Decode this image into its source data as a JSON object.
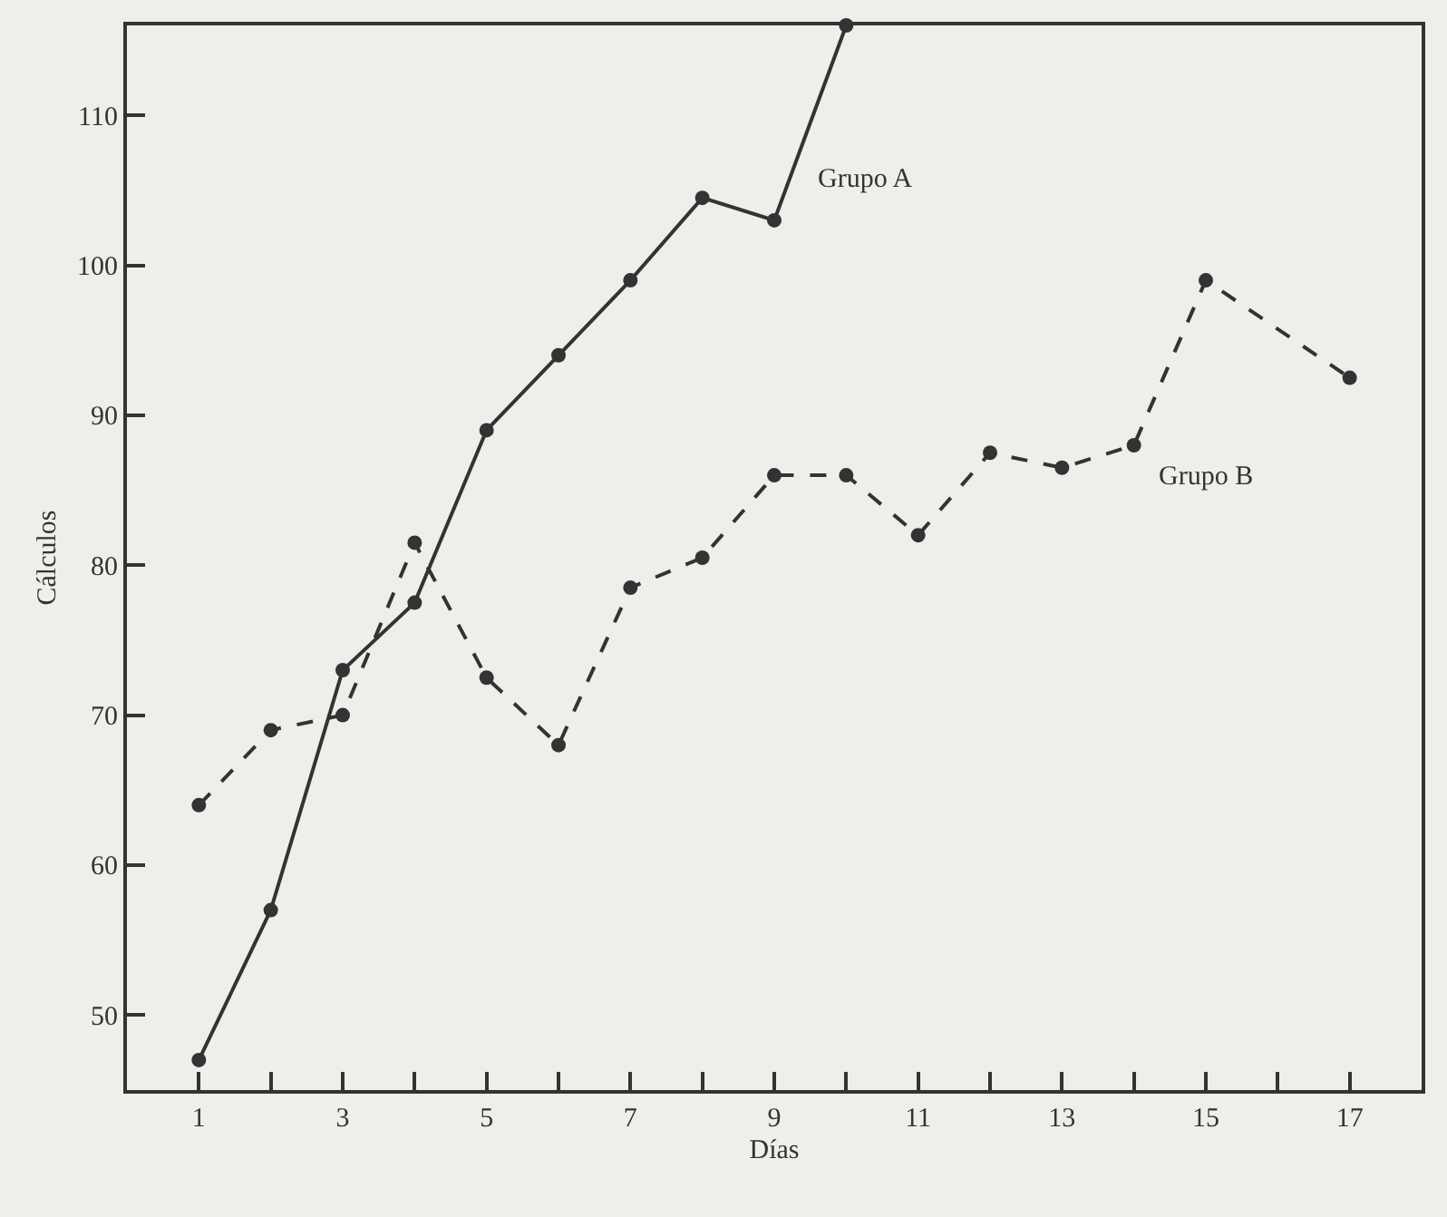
{
  "chart_data": {
    "type": "line",
    "xlabel": "Días",
    "ylabel": "Cálculos",
    "xlim": [
      0,
      18
    ],
    "ylim": [
      45,
      116
    ],
    "xticks": [
      1,
      {
        "value": 2,
        "label": null
      },
      3,
      {
        "value": 4,
        "label": null
      },
      5,
      {
        "value": 6,
        "label": null
      },
      7,
      {
        "value": 8,
        "label": null
      },
      9,
      {
        "value": 10,
        "label": null
      },
      11,
      {
        "value": 12,
        "label": null
      },
      13,
      {
        "value": 14,
        "label": null
      },
      15,
      {
        "value": 16,
        "label": null
      },
      17
    ],
    "yticks": [
      50,
      60,
      70,
      80,
      90,
      100,
      110
    ],
    "grid": false,
    "legend": false,
    "marker": "circle",
    "series": [
      {
        "name": "Grupo A",
        "color": "#333333",
        "line_style": "solid",
        "x": [
          1,
          2,
          3,
          4,
          5,
          6,
          7,
          8,
          9,
          10
        ],
        "values": [
          47,
          57,
          73,
          77.5,
          89,
          94,
          99,
          104.5,
          103,
          116
        ]
      },
      {
        "name": "Grupo B",
        "color": "#333333",
        "line_style": "dashed",
        "x": [
          1,
          2,
          3,
          4,
          5,
          6,
          7,
          8,
          9,
          10,
          11,
          12,
          13,
          14,
          15,
          17
        ],
        "values": [
          64,
          69,
          70,
          81.5,
          72.5,
          68,
          78.5,
          80.5,
          86,
          86,
          82,
          87.5,
          86.5,
          88,
          99,
          92.5
        ]
      }
    ]
  }
}
